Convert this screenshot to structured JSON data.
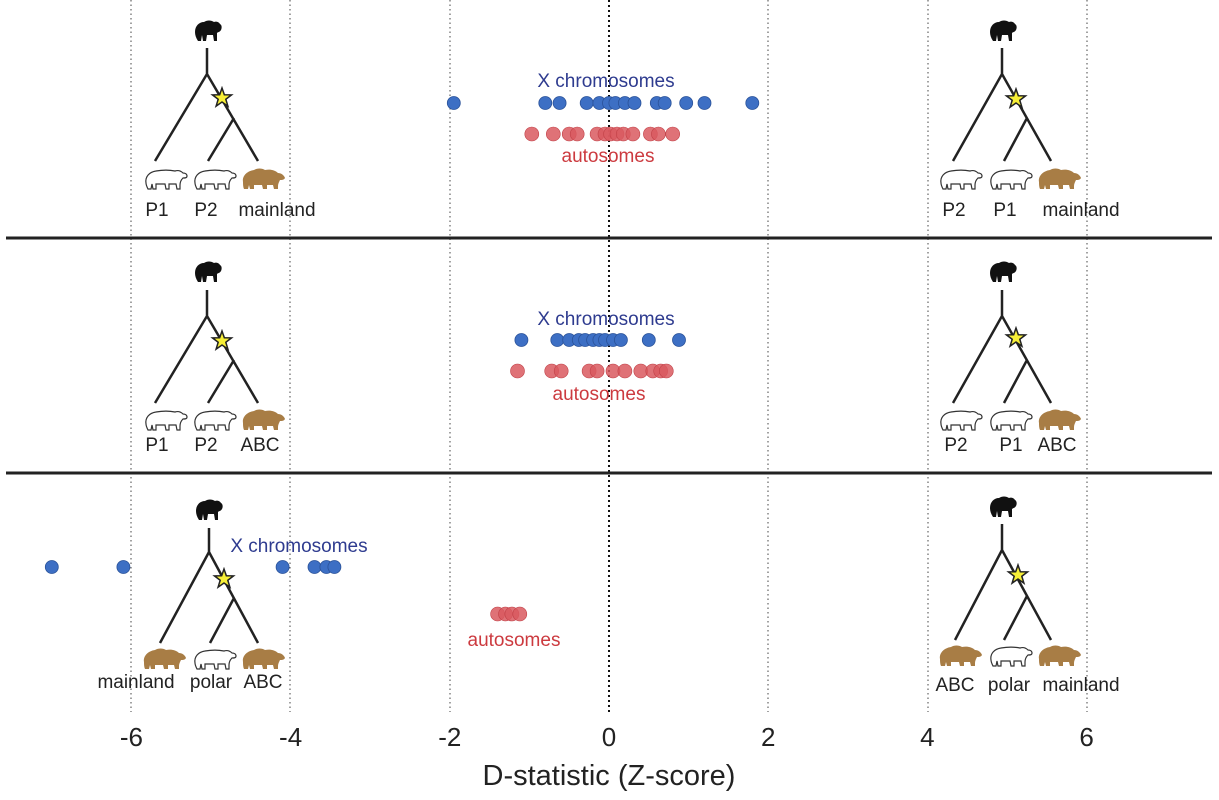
{
  "chart_data": {
    "type": "scatter",
    "xlabel": "D-statistic (Z-score)",
    "xlim": [
      -7,
      7.5
    ],
    "xticks": [
      -6,
      -4,
      -2,
      0,
      2,
      4,
      6
    ],
    "grid": "vertical dotted",
    "panels": [
      {
        "series": [
          {
            "name": "X chromosomes",
            "color": "#3d6fc4",
            "values": [
              -1.95,
              -0.8,
              -0.62,
              -0.28,
              -0.12,
              0.0,
              0.08,
              0.2,
              0.32,
              0.6,
              0.7,
              0.97,
              1.2,
              1.8
            ]
          },
          {
            "name": "autosomes",
            "color": "#d9595f",
            "values": [
              -0.97,
              -0.7,
              -0.5,
              -0.4,
              -0.15,
              -0.05,
              0.02,
              0.1,
              0.18,
              0.3,
              0.52,
              0.62,
              0.8
            ]
          }
        ],
        "left_tree": {
          "tips": [
            "P1",
            "P2",
            "mainland"
          ],
          "icons": [
            "polar",
            "polar",
            "brown"
          ]
        },
        "right_tree": {
          "tips": [
            "P2",
            "P1",
            "mainland"
          ],
          "icons": [
            "polar",
            "polar",
            "brown"
          ]
        }
      },
      {
        "series": [
          {
            "name": "X chromosomes",
            "color": "#3d6fc4",
            "values": [
              -1.1,
              -0.65,
              -0.5,
              -0.38,
              -0.3,
              -0.2,
              -0.12,
              -0.05,
              0.05,
              0.15,
              0.5,
              0.88
            ]
          },
          {
            "name": "autosomes",
            "color": "#d9595f",
            "values": [
              -1.15,
              -0.72,
              -0.6,
              -0.25,
              -0.15,
              0.05,
              0.2,
              0.4,
              0.55,
              0.65,
              0.72
            ]
          }
        ],
        "left_tree": {
          "tips": [
            "P1",
            "P2",
            "ABC"
          ],
          "icons": [
            "polar",
            "polar",
            "brown"
          ]
        },
        "right_tree": {
          "tips": [
            "P2",
            "P1",
            "ABC"
          ],
          "icons": [
            "polar",
            "polar",
            "brown"
          ]
        }
      },
      {
        "series": [
          {
            "name": "X chromosomes",
            "color": "#3d6fc4",
            "values": [
              -7.0,
              -6.1,
              -4.1,
              -3.7,
              -3.55,
              -3.45
            ]
          },
          {
            "name": "autosomes",
            "color": "#d9595f",
            "values": [
              -1.4,
              -1.3,
              -1.22,
              -1.12
            ]
          }
        ],
        "left_tree": {
          "tips": [
            "mainland",
            "polar",
            "ABC"
          ],
          "icons": [
            "brown",
            "polar",
            "brown"
          ]
        },
        "right_tree": {
          "tips": [
            "ABC",
            "polar",
            "mainland"
          ],
          "icons": [
            "brown",
            "polar",
            "brown"
          ]
        }
      }
    ]
  }
}
